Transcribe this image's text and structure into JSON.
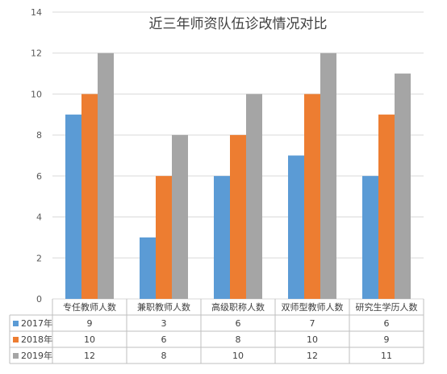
{
  "chart_data": {
    "type": "bar",
    "title": "近三年师资队伍诊改情况对比",
    "categories": [
      "专任教师人数",
      "兼职教师人数",
      "高级职称人数",
      "双师型教师人数",
      "研究生学历人数"
    ],
    "series": [
      {
        "name": "2017年",
        "color": "#5B9BD5",
        "values": [
          9,
          3,
          6,
          7,
          6
        ]
      },
      {
        "name": "2018年",
        "color": "#ED7D31",
        "values": [
          10,
          6,
          8,
          10,
          9
        ]
      },
      {
        "name": "2019年",
        "color": "#A5A5A5",
        "values": [
          12,
          8,
          10,
          12,
          11
        ]
      }
    ],
    "ylim": [
      0,
      14
    ],
    "yticks": [
      0,
      2,
      4,
      6,
      8,
      10,
      12,
      14
    ],
    "grid": true,
    "legend": "data table below chart"
  }
}
